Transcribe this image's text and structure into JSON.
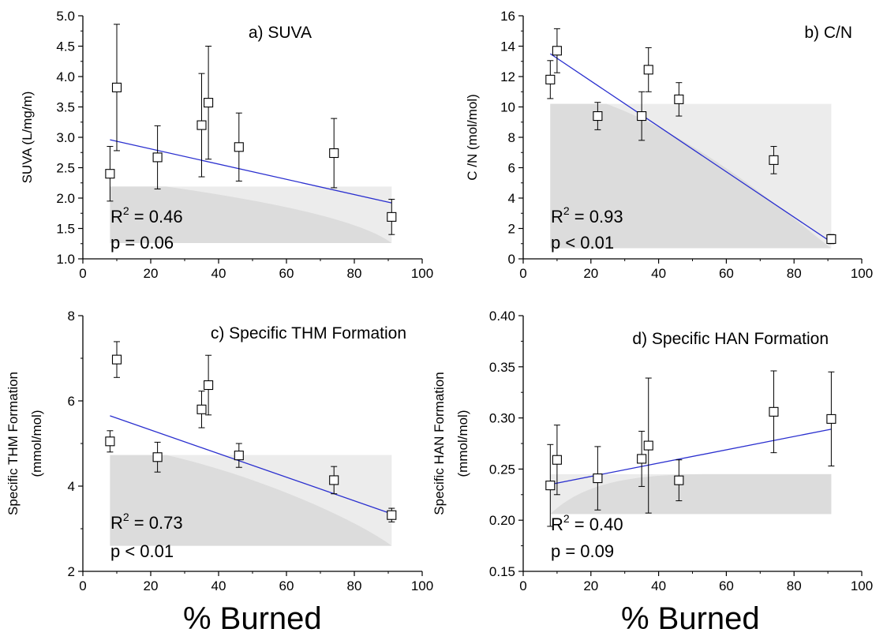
{
  "figure": {
    "x_axis_title": "% Burned"
  },
  "chart_data": [
    {
      "type": "scatter",
      "panel": "a",
      "title": "a) SUVA",
      "ylabel": "SUVA (L/mg/m)",
      "xlabel": "% Burned",
      "xlim": [
        0,
        100
      ],
      "ylim": [
        1.0,
        5.0
      ],
      "xticks": [
        0,
        20,
        40,
        60,
        80,
        100
      ],
      "yticks": [
        1.0,
        1.5,
        2.0,
        2.5,
        3.0,
        3.5,
        4.0,
        4.5,
        5.0
      ],
      "ytick_labels": [
        "1.0",
        "1.5",
        "2.0",
        "2.5",
        "3.0",
        "3.5",
        "4.0",
        "4.5",
        "5.0"
      ],
      "points": [
        {
          "x": 8,
          "y": 2.4,
          "err": 0.45
        },
        {
          "x": 10,
          "y": 3.82,
          "err": 1.04
        },
        {
          "x": 22,
          "y": 2.67,
          "err": 0.52
        },
        {
          "x": 35,
          "y": 3.2,
          "err": 0.85
        },
        {
          "x": 37,
          "y": 3.57,
          "err": 0.93
        },
        {
          "x": 46,
          "y": 2.84,
          "err": 0.56
        },
        {
          "x": 74,
          "y": 2.74,
          "err": 0.57
        },
        {
          "x": 91,
          "y": 1.69,
          "err": 0.29
        }
      ],
      "fit": {
        "x": [
          8,
          91
        ],
        "y": [
          2.96,
          1.92
        ]
      },
      "annotation": {
        "r2_label": "R",
        "r2_sup": "2",
        "r2_value": " = 0.46",
        "p_text": "p = 0.06"
      },
      "grid": false,
      "band": {
        "x0": 8,
        "x1": 91,
        "ylow": 1.26,
        "yhigh": 2.19,
        "dark_y0": 2.19,
        "dark_y1": 1.26
      }
    },
    {
      "type": "scatter",
      "panel": "b",
      "title": "b) C/N",
      "ylabel": "C /N (mol/mol)",
      "xlabel": "% Burned",
      "xlim": [
        0,
        100
      ],
      "ylim": [
        0,
        16
      ],
      "xticks": [
        0,
        20,
        40,
        60,
        80,
        100
      ],
      "yticks": [
        0,
        2,
        4,
        6,
        8,
        10,
        12,
        14,
        16
      ],
      "ytick_labels": [
        "0",
        "2",
        "4",
        "6",
        "8",
        "10",
        "12",
        "14",
        "16"
      ],
      "points": [
        {
          "x": 8,
          "y": 11.8,
          "err": 1.25
        },
        {
          "x": 10,
          "y": 13.7,
          "err": 1.45
        },
        {
          "x": 22,
          "y": 9.4,
          "err": 0.9
        },
        {
          "x": 35,
          "y": 9.4,
          "err": 1.6
        },
        {
          "x": 37,
          "y": 12.45,
          "err": 1.45
        },
        {
          "x": 46,
          "y": 10.5,
          "err": 1.1
        },
        {
          "x": 74,
          "y": 6.5,
          "err": 0.9
        },
        {
          "x": 91,
          "y": 1.3,
          "err": 0.3
        }
      ],
      "fit": {
        "x": [
          8,
          91
        ],
        "y": [
          13.5,
          1.1
        ]
      },
      "annotation": {
        "r2_label": "R",
        "r2_sup": "2",
        "r2_value": " = 0.93",
        "p_text": "p < 0.01"
      },
      "grid": false,
      "band": {
        "x0": 8,
        "x1": 91,
        "ylow": 0.7,
        "yhigh": 10.2,
        "dark_y0": 10.2,
        "dark_y1": 0.7
      }
    },
    {
      "type": "scatter",
      "panel": "c",
      "title": "c) Specific THM Formation",
      "ylabel": "Specific THM Formation",
      "ylabel2": "(mmol/mol)",
      "xlabel": "% Burned",
      "xlim": [
        0,
        100
      ],
      "ylim": [
        2,
        8
      ],
      "xticks": [
        0,
        20,
        40,
        60,
        80,
        100
      ],
      "yticks": [
        2,
        4,
        6,
        8
      ],
      "ytick_labels": [
        "2",
        "4",
        "6",
        "8"
      ],
      "points": [
        {
          "x": 8,
          "y": 5.05,
          "err": 0.25
        },
        {
          "x": 10,
          "y": 6.97,
          "err": 0.42
        },
        {
          "x": 22,
          "y": 4.68,
          "err": 0.35
        },
        {
          "x": 35,
          "y": 5.8,
          "err": 0.43
        },
        {
          "x": 37,
          "y": 6.37,
          "err": 0.7
        },
        {
          "x": 46,
          "y": 4.72,
          "err": 0.28
        },
        {
          "x": 74,
          "y": 4.14,
          "err": 0.32
        },
        {
          "x": 91,
          "y": 3.32,
          "err": 0.16
        }
      ],
      "fit": {
        "x": [
          8,
          91
        ],
        "y": [
          5.65,
          3.35
        ]
      },
      "annotation": {
        "r2_label": "R",
        "r2_sup": "2",
        "r2_value": " = 0.73",
        "p_text": "p < 0.01"
      },
      "grid": false,
      "band": {
        "x0": 8,
        "x1": 91,
        "ylow": 2.6,
        "yhigh": 4.73,
        "dark_y0": 4.73,
        "dark_y1": 2.6
      }
    },
    {
      "type": "scatter",
      "panel": "d",
      "title": "d) Specific HAN Formation",
      "ylabel": "Specific HAN Formation",
      "ylabel2": "(mmol/mol)",
      "xlabel": "% Burned",
      "xlim": [
        0,
        100
      ],
      "ylim": [
        0.15,
        0.4
      ],
      "xticks": [
        0,
        20,
        40,
        60,
        80,
        100
      ],
      "yticks": [
        0.15,
        0.2,
        0.25,
        0.3,
        0.35,
        0.4
      ],
      "ytick_labels": [
        "0.15",
        "0.20",
        "0.25",
        "0.30",
        "0.35",
        "0.40"
      ],
      "points": [
        {
          "x": 8,
          "y": 0.234,
          "err": 0.04
        },
        {
          "x": 10,
          "y": 0.259,
          "err": 0.034
        },
        {
          "x": 22,
          "y": 0.241,
          "err": 0.031
        },
        {
          "x": 35,
          "y": 0.26,
          "err": 0.027
        },
        {
          "x": 37,
          "y": 0.273,
          "err": 0.066
        },
        {
          "x": 46,
          "y": 0.239,
          "err": 0.02
        },
        {
          "x": 74,
          "y": 0.306,
          "err": 0.04
        },
        {
          "x": 91,
          "y": 0.299,
          "err": 0.046
        }
      ],
      "fit": {
        "x": [
          8,
          91
        ],
        "y": [
          0.235,
          0.289
        ]
      },
      "annotation": {
        "r2_label": "R",
        "r2_sup": "2",
        "r2_value": " = 0.40",
        "p_text": "p = 0.09"
      },
      "grid": false,
      "band": {
        "x0": 8,
        "x1": 91,
        "ylow": 0.206,
        "yhigh": 0.245,
        "dark_y0": 0.206,
        "dark_y1": 0.245
      }
    }
  ]
}
